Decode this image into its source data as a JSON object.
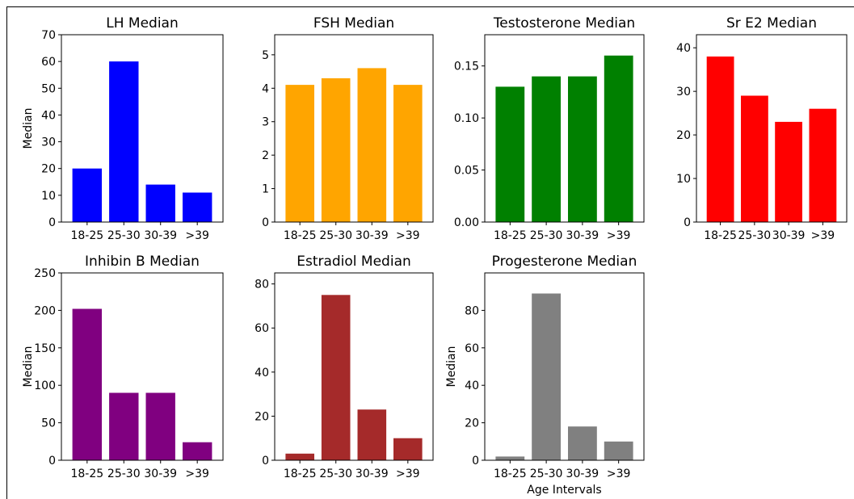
{
  "chart_data": [
    {
      "type": "bar",
      "title": "LH Median",
      "categories": [
        "18-25",
        "25-30",
        "30-39",
        ">39"
      ],
      "values": [
        20,
        60,
        14,
        11
      ],
      "color": "#0000ff",
      "ylabel": "Median",
      "xlabel": "",
      "ylim": [
        0,
        70
      ],
      "yticks": [
        "0",
        "10",
        "20",
        "30",
        "40",
        "50",
        "60",
        "70"
      ],
      "ytick_values": [
        0,
        10,
        20,
        30,
        40,
        50,
        60,
        70
      ]
    },
    {
      "type": "bar",
      "title": "FSH Median",
      "categories": [
        "18-25",
        "25-30",
        "30-39",
        ">39"
      ],
      "values": [
        4.1,
        4.3,
        4.6,
        4.1
      ],
      "color": "#ffa500",
      "ylabel": "",
      "xlabel": "",
      "ylim": [
        0,
        5.6
      ],
      "yticks": [
        "0",
        "1",
        "2",
        "3",
        "4",
        "5"
      ],
      "ytick_values": [
        0,
        1,
        2,
        3,
        4,
        5
      ]
    },
    {
      "type": "bar",
      "title": "Testosterone Median",
      "categories": [
        "18-25",
        "25-30",
        "30-39",
        ">39"
      ],
      "values": [
        0.13,
        0.14,
        0.14,
        0.16
      ],
      "color": "#008000",
      "ylabel": "",
      "xlabel": "",
      "ylim": [
        0,
        0.18
      ],
      "yticks": [
        "0.00",
        "0.05",
        "0.10",
        "0.15"
      ],
      "ytick_values": [
        0,
        0.05,
        0.1,
        0.15
      ]
    },
    {
      "type": "bar",
      "title": "Sr E2 Median",
      "categories": [
        "18-25",
        "25-30",
        "30-39",
        ">39"
      ],
      "values": [
        38,
        29,
        23,
        26
      ],
      "color": "#ff0000",
      "ylabel": "",
      "xlabel": "",
      "ylim": [
        0,
        43
      ],
      "yticks": [
        "0",
        "10",
        "20",
        "30",
        "40"
      ],
      "ytick_values": [
        0,
        10,
        20,
        30,
        40
      ]
    },
    {
      "type": "bar",
      "title": "Inhibin B Median",
      "categories": [
        "18-25",
        "25-30",
        "30-39",
        ">39"
      ],
      "values": [
        202,
        90,
        90,
        24
      ],
      "color": "#800080",
      "ylabel": "Median",
      "xlabel": "",
      "ylim": [
        0,
        250
      ],
      "yticks": [
        "0",
        "50",
        "100",
        "150",
        "200",
        "250"
      ],
      "ytick_values": [
        0,
        50,
        100,
        150,
        200,
        250
      ]
    },
    {
      "type": "bar",
      "title": "Estradiol Median",
      "categories": [
        "18-25",
        "25-30",
        "30-39",
        ">39"
      ],
      "values": [
        3,
        75,
        23,
        10
      ],
      "color": "#a52a2a",
      "ylabel": "",
      "xlabel": "",
      "ylim": [
        0,
        85
      ],
      "yticks": [
        "0",
        "20",
        "40",
        "60",
        "80"
      ],
      "ytick_values": [
        0,
        20,
        40,
        60,
        80
      ]
    },
    {
      "type": "bar",
      "title": "Progesterone Median",
      "categories": [
        "18-25",
        "25-30",
        "30-39",
        ">39"
      ],
      "values": [
        2,
        89,
        18,
        10
      ],
      "color": "#808080",
      "ylabel": "Median",
      "xlabel": "Age Intervals",
      "ylim": [
        0,
        100
      ],
      "yticks": [
        "0",
        "20",
        "40",
        "60",
        "80"
      ],
      "ytick_values": [
        0,
        20,
        40,
        60,
        80
      ]
    }
  ]
}
